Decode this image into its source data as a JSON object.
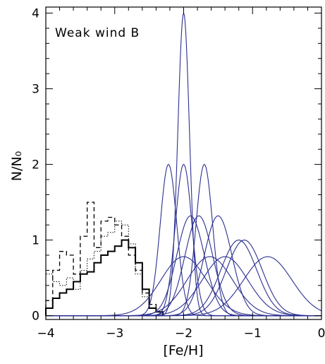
{
  "chart_data": {
    "type": "line",
    "title": "",
    "annotation": "Weak wind B",
    "xlabel": "[Fe/H]",
    "ylabel": "N/N₀",
    "xlim": [
      -4,
      0
    ],
    "ylim": [
      -0.05,
      4.08
    ],
    "grid": false,
    "legend": "none",
    "x_ticks": [
      -4,
      -3,
      -2,
      -1,
      0
    ],
    "x_tick_labels": [
      "−4",
      "−3",
      "−2",
      "−1",
      "0"
    ],
    "y_ticks": [
      0,
      1,
      2,
      3,
      4
    ],
    "y_tick_labels": [
      "0",
      "1",
      "2",
      "3",
      "4"
    ],
    "colors": {
      "model": "#2b2f8f",
      "observed": "#000000"
    },
    "gaussian_series": [
      {
        "mean": -2.0,
        "peak": 4.0,
        "sigma": 0.085
      },
      {
        "mean": -2.22,
        "peak": 2.0,
        "sigma": 0.12
      },
      {
        "mean": -2.0,
        "peak": 2.0,
        "sigma": 0.12
      },
      {
        "mean": -1.7,
        "peak": 2.0,
        "sigma": 0.12
      },
      {
        "mean": -1.9,
        "peak": 1.32,
        "sigma": 0.2
      },
      {
        "mean": -1.78,
        "peak": 1.32,
        "sigma": 0.2
      },
      {
        "mean": -1.5,
        "peak": 1.32,
        "sigma": 0.2
      },
      {
        "mean": -2.0,
        "peak": 0.78,
        "sigma": 0.33
      },
      {
        "mean": -1.62,
        "peak": 0.78,
        "sigma": 0.33
      },
      {
        "mean": -1.4,
        "peak": 0.78,
        "sigma": 0.33
      },
      {
        "mean": -1.2,
        "peak": 1.0,
        "sigma": 0.26
      },
      {
        "mean": -1.12,
        "peak": 1.0,
        "sigma": 0.26
      },
      {
        "mean": -0.78,
        "peak": 0.78,
        "sigma": 0.35
      }
    ],
    "observed_solid": {
      "bin_edges": [
        -4.0,
        -3.9,
        -3.8,
        -3.7,
        -3.6,
        -3.5,
        -3.4,
        -3.3,
        -3.2,
        -3.1,
        -3.0,
        -2.9,
        -2.8,
        -2.7,
        -2.6,
        -2.5,
        -2.4,
        -2.3
      ],
      "counts": [
        0.1,
        0.23,
        0.3,
        0.35,
        0.45,
        0.55,
        0.58,
        0.7,
        0.8,
        0.85,
        0.92,
        1.0,
        0.9,
        0.7,
        0.35,
        0.1,
        0.05
      ]
    },
    "observed_dashed": {
      "bin_edges": [
        -4.0,
        -3.9,
        -3.8,
        -3.7,
        -3.6,
        -3.5,
        -3.4,
        -3.3,
        -3.2,
        -3.1,
        -3.0,
        -2.9,
        -2.8,
        -2.7,
        -2.6,
        -2.5,
        -2.4,
        -2.3
      ],
      "counts": [
        0.2,
        0.6,
        0.85,
        0.8,
        0.55,
        1.05,
        1.5,
        0.9,
        1.25,
        1.3,
        1.2,
        1.05,
        0.8,
        0.6,
        0.3,
        0.15,
        0.05
      ]
    },
    "observed_dotted": {
      "bin_edges": [
        -4.0,
        -3.9,
        -3.8,
        -3.7,
        -3.6,
        -3.5,
        -3.4,
        -3.3,
        -3.2,
        -3.1,
        -3.0,
        -2.9,
        -2.8,
        -2.7,
        -2.6,
        -2.5,
        -2.4,
        -2.3
      ],
      "counts": [
        0.55,
        0.45,
        0.4,
        0.5,
        0.35,
        0.6,
        0.75,
        0.85,
        1.05,
        1.1,
        1.25,
        1.2,
        0.95,
        0.55,
        0.25,
        0.1,
        0.05
      ]
    }
  }
}
